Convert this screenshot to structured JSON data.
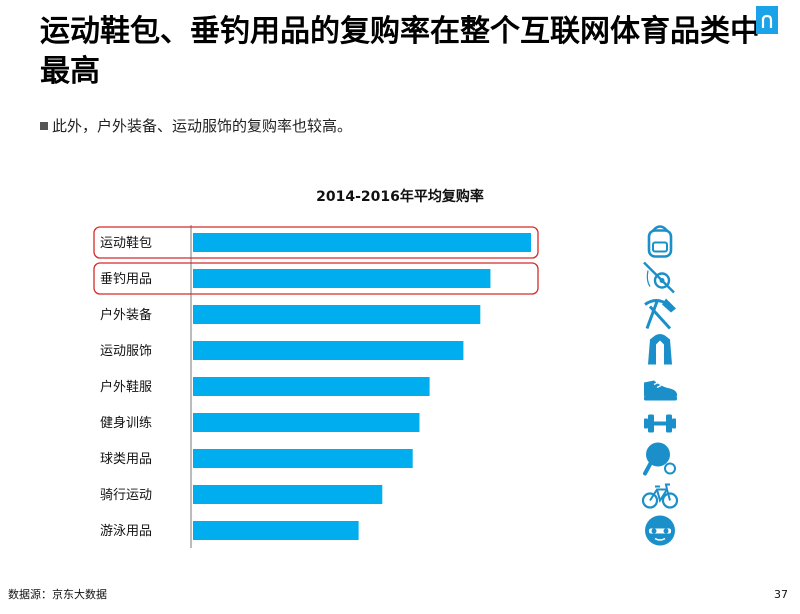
{
  "header": {
    "title": "运动鞋包、垂钓用品的复购率在整个互联网体育品类中最高",
    "subtitle": "此外，户外装备、运动服饰的复购率也较高。"
  },
  "footer": {
    "source": "数据源：京东大数据",
    "page_number": "37"
  },
  "colors": {
    "bar": "#00aeef",
    "highlight": "#d42a2a",
    "icon": "#1a8fc9",
    "brand": "#1aa3e8"
  },
  "chart_data": {
    "type": "bar",
    "orientation": "horizontal",
    "title": "2014-2016年平均复购率",
    "categories": [
      "运动鞋包",
      "垂钓用品",
      "户外装备",
      "运动服饰",
      "户外鞋服",
      "健身训练",
      "球类用品",
      "骑行运动",
      "游泳用品"
    ],
    "values": [
      100,
      88,
      85,
      80,
      70,
      67,
      65,
      56,
      49
    ],
    "highlighted": [
      "运动鞋包",
      "垂钓用品"
    ],
    "icons": [
      "backpack-icon",
      "fishing-icon",
      "pickaxe-shovel-icon",
      "jacket-icon",
      "sneaker-icon",
      "dumbbell-icon",
      "ping-pong-icon",
      "bicycle-icon",
      "swim-cap-icon"
    ],
    "xlim": [
      0,
      100
    ],
    "grid": false,
    "legend": "none"
  }
}
